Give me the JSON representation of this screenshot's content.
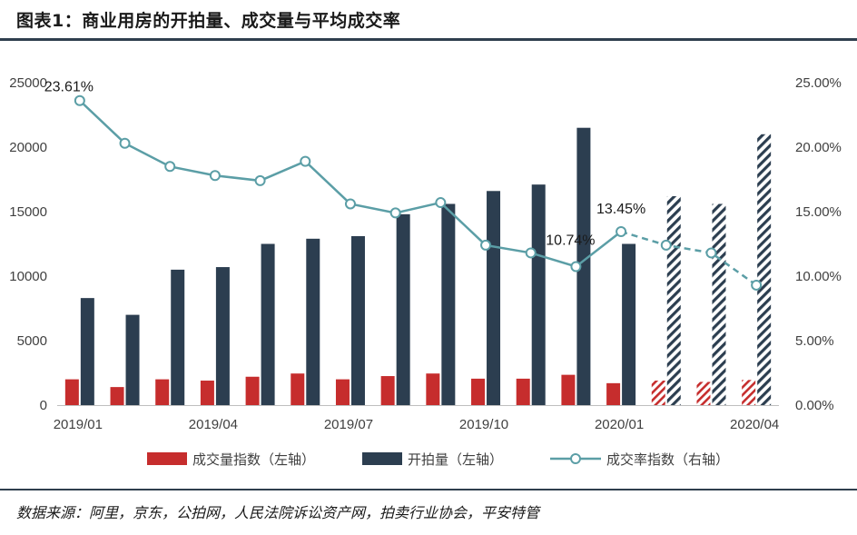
{
  "header": {
    "title": "图表1：商业用房的开拍量、成交量与平均成交率"
  },
  "footer": {
    "source": "数据来源：阿里，京东，公拍网，人民法院诉讼资产网，拍卖行业协会，平安特管"
  },
  "colors": {
    "red": "#c62d2d",
    "navy": "#2c3e50",
    "teal": "#5b9ea6",
    "rule": "#2f3f4e"
  },
  "chart_data": {
    "type": "bar",
    "x": [
      "2019/01",
      "2019/02",
      "2019/03",
      "2019/04",
      "2019/05",
      "2019/06",
      "2019/07",
      "2019/08",
      "2019/09",
      "2019/10",
      "2019/11",
      "2019/12",
      "2020/01",
      "2020/02",
      "2020/03",
      "2020/04"
    ],
    "x_tick_labels": [
      "2019/01",
      "2019/04",
      "2019/07",
      "2019/10",
      "2020/01",
      "2020/04"
    ],
    "x_tick_months": [
      "2019/01",
      "2019/04",
      "2019/07",
      "2019/10",
      "2020/01",
      "2020/04"
    ],
    "y_left": {
      "lim": [
        0,
        25000
      ],
      "ticks": [
        "0",
        "5000",
        "10000",
        "15000",
        "20000",
        "25000"
      ]
    },
    "y_right": {
      "lim": [
        0,
        25
      ],
      "ticks": [
        "0.00%",
        "5.00%",
        "10.00%",
        "15.00%",
        "20.00%",
        "25.00%"
      ]
    },
    "hatched_from": "2020/02",
    "dashed_from": "2020/01",
    "series": [
      {
        "name": "成交量指数（左轴）",
        "type": "bar",
        "axis": "left",
        "values": [
          2000,
          1400,
          2000,
          1900,
          2200,
          2450,
          2000,
          2250,
          2450,
          2050,
          2050,
          2350,
          1700,
          1900,
          1800,
          1950
        ]
      },
      {
        "name": "开拍量（左轴）",
        "type": "bar",
        "axis": "left",
        "values": [
          8300,
          7000,
          10500,
          10700,
          12500,
          12900,
          13100,
          14800,
          15600,
          16600,
          17100,
          21500,
          12500,
          16200,
          15600,
          21000
        ]
      },
      {
        "name": "成交率指数（右轴）",
        "type": "line",
        "axis": "right",
        "unit": "%",
        "values": [
          23.61,
          20.3,
          18.5,
          17.8,
          17.4,
          18.9,
          15.6,
          14.9,
          15.7,
          12.4,
          11.8,
          10.74,
          13.45,
          12.4,
          11.8,
          9.3
        ]
      }
    ],
    "annotations": [
      {
        "index": 0,
        "text": "23.61%"
      },
      {
        "index": 11,
        "text": "10.74%"
      },
      {
        "index": 12,
        "text": "13.45%"
      }
    ],
    "legend": {
      "placement": "bottom",
      "items": [
        "成交量指数（左轴）",
        "开拍量（左轴）",
        "成交率指数（右轴）"
      ]
    }
  }
}
